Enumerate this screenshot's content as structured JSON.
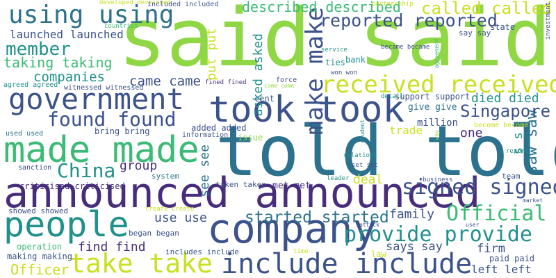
{
  "colors": {
    "lime": "#8fd744",
    "green": "#3bbb75",
    "teal": "#21918c",
    "blue": "#2c728e",
    "navy": "#3b528b",
    "purple": "#472d7b",
    "yellow": "#c8e020",
    "dark": "#440154"
  },
  "words": {
    "said": "said said",
    "told": "told told",
    "announced": "announced announced",
    "company": "company",
    "made": "made made",
    "people": "people",
    "took": "took took",
    "government": "government",
    "received": "received received",
    "include": "include include",
    "take": "take take",
    "using": "using using",
    "make": "make make",
    "reported": "reported reported",
    "signed": "signed signed",
    "official": "Official",
    "provide": "provide provide",
    "china": "China",
    "found": "found found",
    "member": "member",
    "started": "started started",
    "saw": "saw saw",
    "singapore": "Singapore",
    "called": "called called",
    "described": "described described",
    "launched": "launched launched",
    "taking": "taking taking",
    "companies": "companies",
    "came": "came came",
    "died": "died died",
    "put": "put put",
    "asked": "asked asked",
    "see": "see see",
    "group": "group",
    "use": "use use",
    "family": "family",
    "deal": "deal",
    "one": "one",
    "s": "s s",
    "trade": "trade",
    "million": "million",
    "find": "find find",
    "says": "says say",
    "firm": "firm",
    "officer": "Officer",
    "left": "left left",
    "criticised": "criticised criticised",
    "met": "met met",
    "give": "give give",
    "support": "support support",
    "say": "say say",
    "bank": "bank",
    "state": "state",
    "developed": "developed developed",
    "included": "included included",
    "partnership": "partnership",
    "countries": "countries",
    "service": "service",
    "ties": "ties",
    "won": "won won",
    "became": "became became",
    "agreement": "agreement",
    "investment": "investment",
    "agreed": "agreed agreed",
    "witnessed": "witnessed witnessed",
    "fined": "fined fined",
    "force": "force",
    "come": "come come",
    "cent": "cent",
    "issue": "issue",
    "detail": "detail",
    "become": "become become",
    "added": "added added",
    "information": "information",
    "used": "used used",
    "bring": "bring bring",
    "sanction": "sanction",
    "system": "system",
    "taken": "taken taken",
    "leader": "leader",
    "set": "set set",
    "relations": "relations",
    "student": "student",
    "way": "way",
    "report": "report",
    "team": "team",
    "business": "business",
    "market": "market",
    "showed": "showed showed",
    "create": "create create",
    "began": "began began",
    "operation": "operation",
    "includes": "includes include",
    "making": "making making",
    "time": "time",
    "law": "law",
    "paid": "paid paid",
    "attack": "attack",
    "user": "user"
  }
}
